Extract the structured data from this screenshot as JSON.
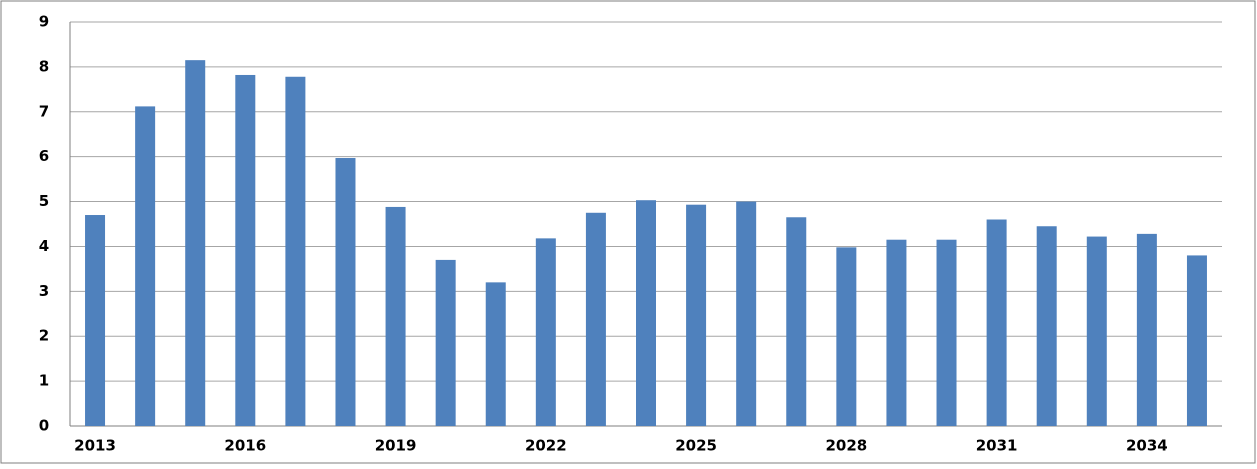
{
  "chart_data": {
    "type": "bar",
    "categories": [
      "2013",
      null,
      null,
      "2016",
      null,
      null,
      "2019",
      null,
      null,
      "2022",
      null,
      null,
      "2025",
      null,
      null,
      "2028",
      null,
      null,
      "2031",
      null,
      null,
      "2034",
      null
    ],
    "values": [
      4.7,
      7.12,
      8.15,
      7.82,
      7.78,
      5.97,
      4.88,
      3.7,
      3.2,
      4.18,
      4.75,
      5.03,
      4.93,
      5.0,
      4.65,
      3.98,
      4.15,
      4.15,
      4.6,
      4.45,
      4.22,
      4.28,
      3.8
    ],
    "color": "#4f81bd",
    "ylim": [
      0,
      9
    ],
    "yticks": [
      0,
      1,
      2,
      3,
      4,
      5,
      6,
      7,
      8,
      9
    ],
    "grid": true
  }
}
